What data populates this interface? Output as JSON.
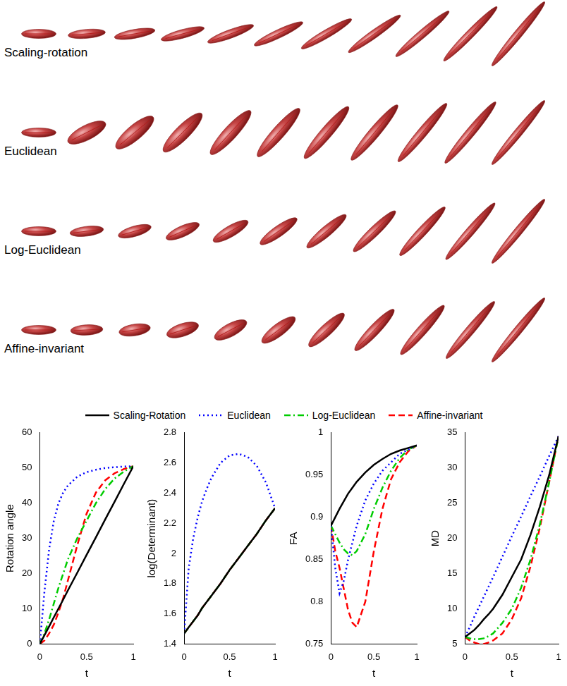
{
  "figure": {
    "rows": [
      "Scaling-rotation",
      "Euclidean",
      "Log-Euclidean",
      "Affine-invariant"
    ]
  },
  "chart_data": [
    {
      "type": "line",
      "x_label": "t",
      "y_label": "Rotation angle",
      "x": [
        0,
        0.05,
        0.1,
        0.15,
        0.2,
        0.25,
        0.3,
        0.4,
        0.5,
        0.6,
        0.7,
        0.8,
        0.9,
        1
      ],
      "xlim": [
        0,
        1
      ],
      "xticks": [
        0,
        0.5,
        1
      ],
      "ylim": [
        0,
        60
      ],
      "yticks": [
        0,
        10,
        20,
        30,
        40,
        50,
        60
      ],
      "grid": false,
      "series": [
        {
          "name": "Scaling-Rotation",
          "color": "#000000",
          "line_style": "solid",
          "values": [
            0,
            2.5,
            5,
            7.6,
            10.1,
            12.6,
            15.2,
            20.2,
            25.3,
            30.3,
            35.4,
            40.4,
            45.5,
            50.5
          ]
        },
        {
          "name": "Euclidean",
          "color": "#0000ff",
          "line_style": "dotted",
          "values": [
            0,
            15,
            27,
            35,
            40,
            43,
            45,
            47.5,
            48.8,
            49.5,
            50,
            50.2,
            50.4,
            50.5
          ]
        },
        {
          "name": "Log-Euclidean",
          "color": "#00cc00",
          "line_style": "dashdot",
          "values": [
            0,
            3,
            7,
            11.5,
            16,
            20,
            24,
            30,
            35,
            40,
            44,
            47,
            49,
            50.5
          ]
        },
        {
          "name": "Affine-invariant",
          "color": "#ff0000",
          "line_style": "dashed",
          "values": [
            0,
            1,
            3,
            5.5,
            9,
            13,
            18,
            28,
            37,
            43,
            46.5,
            48.5,
            49.7,
            50.5
          ]
        }
      ]
    },
    {
      "type": "line",
      "x_label": "t",
      "y_label": "log(Determinant)",
      "x": [
        0,
        0.05,
        0.1,
        0.15,
        0.2,
        0.25,
        0.3,
        0.4,
        0.5,
        0.6,
        0.7,
        0.8,
        0.9,
        1
      ],
      "xlim": [
        0,
        1
      ],
      "xticks": [
        0,
        0.5,
        1
      ],
      "ylim": [
        1.4,
        2.8
      ],
      "yticks": [
        1.4,
        1.6,
        1.8,
        2,
        2.2,
        2.4,
        2.6,
        2.8
      ],
      "grid": false,
      "series": [
        {
          "name": "Scaling-Rotation",
          "color": "#000000",
          "line_style": "solid",
          "values": [
            1.47,
            1.51,
            1.55,
            1.59,
            1.64,
            1.68,
            1.72,
            1.8,
            1.89,
            1.97,
            2.05,
            2.13,
            2.22,
            2.3
          ]
        },
        {
          "name": "Euclidean",
          "color": "#0000ff",
          "line_style": "dotted",
          "values": [
            1.47,
            1.9,
            2.1,
            2.24,
            2.35,
            2.43,
            2.5,
            2.6,
            2.65,
            2.66,
            2.64,
            2.58,
            2.47,
            2.3
          ]
        },
        {
          "name": "Log-Euclidean",
          "color": "#00cc00",
          "line_style": "dashdot",
          "values": [
            1.47,
            1.51,
            1.55,
            1.59,
            1.64,
            1.68,
            1.72,
            1.8,
            1.89,
            1.97,
            2.05,
            2.13,
            2.22,
            2.3
          ]
        },
        {
          "name": "Affine-invariant",
          "color": "#ff0000",
          "line_style": "dashed",
          "values": [
            1.47,
            1.51,
            1.55,
            1.59,
            1.64,
            1.68,
            1.72,
            1.8,
            1.89,
            1.97,
            2.05,
            2.13,
            2.22,
            2.3
          ]
        }
      ]
    },
    {
      "type": "line",
      "x_label": "t",
      "y_label": "FA",
      "legend": "top",
      "x": [
        0,
        0.05,
        0.1,
        0.15,
        0.2,
        0.25,
        0.3,
        0.4,
        0.5,
        0.6,
        0.7,
        0.8,
        0.9,
        1
      ],
      "xlim": [
        0,
        1
      ],
      "xticks": [
        0,
        0.5,
        1
      ],
      "ylim": [
        0.75,
        1
      ],
      "yticks": [
        0.75,
        0.8,
        0.85,
        0.9,
        0.95,
        1
      ],
      "grid": false,
      "series": [
        {
          "name": "Scaling-Rotation",
          "color": "#000000",
          "line_style": "solid",
          "values": [
            0.89,
            0.9,
            0.91,
            0.919,
            0.928,
            0.935,
            0.942,
            0.953,
            0.962,
            0.969,
            0.975,
            0.979,
            0.982,
            0.985
          ]
        },
        {
          "name": "Euclidean",
          "color": "#0000ff",
          "line_style": "dotted",
          "values": [
            0.89,
            0.84,
            0.81,
            0.825,
            0.85,
            0.87,
            0.89,
            0.92,
            0.94,
            0.955,
            0.965,
            0.975,
            0.98,
            0.985
          ]
        },
        {
          "name": "Log-Euclidean",
          "color": "#00cc00",
          "line_style": "dashdot",
          "values": [
            0.89,
            0.88,
            0.87,
            0.862,
            0.857,
            0.855,
            0.86,
            0.88,
            0.91,
            0.935,
            0.955,
            0.97,
            0.98,
            0.985
          ]
        },
        {
          "name": "Affine-invariant",
          "color": "#ff0000",
          "line_style": "dashed",
          "values": [
            0.89,
            0.86,
            0.84,
            0.815,
            0.79,
            0.775,
            0.77,
            0.8,
            0.86,
            0.91,
            0.945,
            0.965,
            0.978,
            0.985
          ]
        }
      ]
    },
    {
      "type": "line",
      "x_label": "t",
      "y_label": "MD",
      "x": [
        0,
        0.05,
        0.1,
        0.15,
        0.2,
        0.25,
        0.3,
        0.4,
        0.5,
        0.6,
        0.7,
        0.8,
        0.9,
        1
      ],
      "xlim": [
        0,
        1
      ],
      "xticks": [
        0,
        0.5,
        1
      ],
      "ylim": [
        5,
        35
      ],
      "yticks": [
        5,
        10,
        15,
        20,
        25,
        30,
        35
      ],
      "grid": false,
      "series": [
        {
          "name": "Scaling-Rotation",
          "color": "#000000",
          "line_style": "solid",
          "values": [
            6,
            6.5,
            7,
            7.7,
            8.5,
            9.2,
            10,
            12,
            14.5,
            17,
            20.5,
            24.5,
            29,
            34.5
          ]
        },
        {
          "name": "Euclidean",
          "color": "#0000ff",
          "line_style": "dotted",
          "values": [
            6,
            7.4,
            8.9,
            10.3,
            11.7,
            13.1,
            14.5,
            17.4,
            20.3,
            23.1,
            26,
            28.8,
            31.7,
            34.5
          ]
        },
        {
          "name": "Log-Euclidean",
          "color": "#00cc00",
          "line_style": "dashdot",
          "values": [
            6,
            5.8,
            5.7,
            5.7,
            5.8,
            6.1,
            6.5,
            8,
            10,
            13,
            17,
            22,
            28,
            34.5
          ]
        },
        {
          "name": "Affine-invariant",
          "color": "#ff0000",
          "line_style": "dashed",
          "values": [
            6,
            5.5,
            5.2,
            5,
            5,
            5.2,
            5.5,
            6.5,
            8.5,
            11.5,
            16,
            21.5,
            28,
            34.5
          ]
        }
      ]
    }
  ]
}
